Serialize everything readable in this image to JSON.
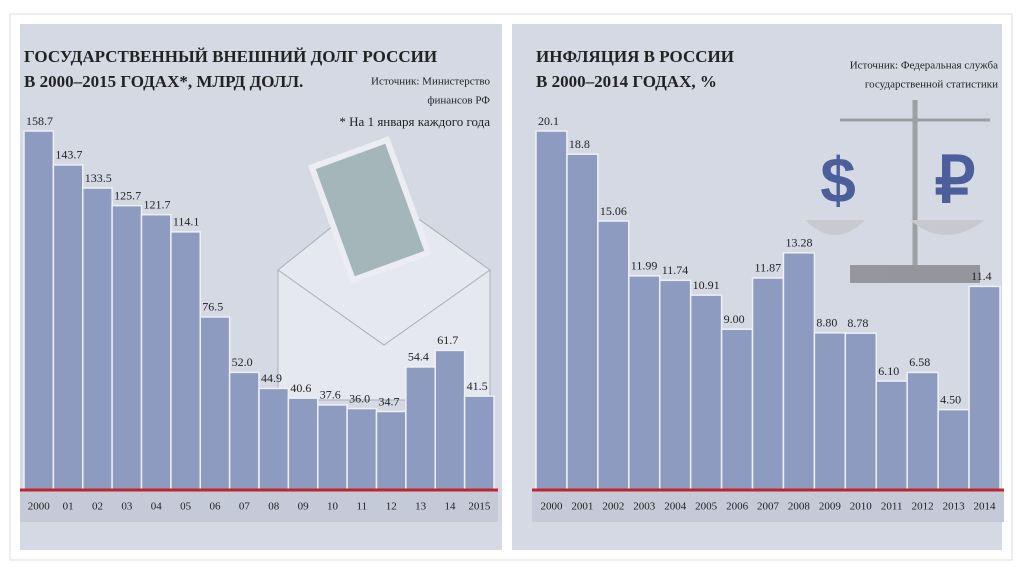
{
  "chart_data": [
    {
      "type": "bar",
      "title": [
        "ГОСУДАРСТВЕННЫЙ ВНЕШНИЙ ДОЛГ РОССИИ",
        "В 2000–2015 ГОДАХ*, МЛРД ДОЛЛ."
      ],
      "source": [
        "Источник: Министерство",
        "финансов РФ"
      ],
      "note": "* На 1 января каждого года",
      "categories": [
        "2000",
        "01",
        "02",
        "03",
        "04",
        "05",
        "06",
        "07",
        "08",
        "09",
        "10",
        "11",
        "12",
        "13",
        "14",
        "2015"
      ],
      "values": [
        158.7,
        143.7,
        133.5,
        125.7,
        121.7,
        114.1,
        76.5,
        52.0,
        44.9,
        40.6,
        37.6,
        36.0,
        34.7,
        54.4,
        61.7,
        41.5
      ],
      "value_labels": [
        "158.7",
        "143.7",
        "133.5",
        "125.7",
        "121.7",
        "114.1",
        "76.5",
        "52.0",
        "44.9",
        "40.6",
        "37.6",
        "36.0",
        "34.7",
        "54.4",
        "61.7",
        "41.5"
      ],
      "color": "#8e9bc0"
    },
    {
      "type": "bar",
      "title": [
        "ИНФЛЯЦИЯ В РОССИИ",
        "В 2000–2014 ГОДАХ, %"
      ],
      "source": [
        "Источник: Федеральная служба",
        "государственной статистики"
      ],
      "categories": [
        "2000",
        "2001",
        "2002",
        "2003",
        "2004",
        "2005",
        "2006",
        "2007",
        "2008",
        "2009",
        "2010",
        "2011",
        "2012",
        "2013",
        "2014"
      ],
      "values": [
        20.1,
        18.8,
        15.06,
        11.99,
        11.74,
        10.91,
        9.0,
        11.87,
        13.28,
        8.8,
        8.78,
        6.1,
        6.58,
        4.5,
        11.4
      ],
      "value_labels": [
        "20.1",
        "18.8",
        "15.06",
        "11.99",
        "11.74",
        "10.91",
        "9.00",
        "11.87",
        "13.28",
        "8.80",
        "8.78",
        "6.10",
        "6.58",
        "4.50",
        "11.4"
      ],
      "color": "#8e9bc0"
    }
  ]
}
